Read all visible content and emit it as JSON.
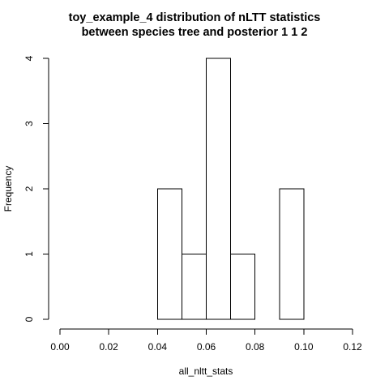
{
  "chart_data": {
    "type": "bar",
    "title_line1": "toy_example_4  distribution of nLTT statistics",
    "title_line2": "between species tree and posterior 1 1 2",
    "xlabel": "all_nltt_stats",
    "ylabel": "Frequency",
    "xlim": [
      0.0,
      0.12
    ],
    "ylim": [
      0,
      4
    ],
    "x_ticks": [
      "0.00",
      "0.02",
      "0.04",
      "0.06",
      "0.08",
      "0.10",
      "0.12"
    ],
    "y_ticks": [
      "0",
      "1",
      "2",
      "3",
      "4"
    ],
    "bins": [
      {
        "from": 0.04,
        "to": 0.05,
        "count": 2
      },
      {
        "from": 0.05,
        "to": 0.06,
        "count": 1
      },
      {
        "from": 0.06,
        "to": 0.07,
        "count": 4
      },
      {
        "from": 0.07,
        "to": 0.08,
        "count": 1
      },
      {
        "from": 0.08,
        "to": 0.09,
        "count": 0
      },
      {
        "from": 0.09,
        "to": 0.1,
        "count": 2
      }
    ],
    "grid": false,
    "bar_fill": "#ffffff",
    "bar_stroke": "#000000"
  }
}
